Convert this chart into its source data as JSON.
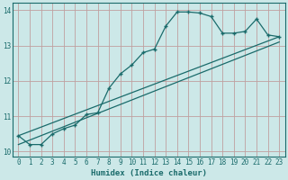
{
  "xlabel": "Humidex (Indice chaleur)",
  "bg_color": "#cce8e8",
  "grid_color": "#c0a0a0",
  "line_color": "#1a6b6b",
  "x_ticks": [
    0,
    1,
    2,
    3,
    4,
    5,
    6,
    7,
    8,
    9,
    10,
    11,
    12,
    13,
    14,
    15,
    16,
    17,
    18,
    19,
    20,
    21,
    22,
    23
  ],
  "y_ticks": [
    10,
    11,
    12,
    13,
    14
  ],
  "x_min": -0.5,
  "x_max": 23.5,
  "y_min": 9.85,
  "y_max": 14.2,
  "curve1_x": [
    0,
    1,
    2,
    3,
    4,
    5,
    6,
    7,
    8,
    9,
    10,
    11,
    12,
    13,
    14,
    15,
    16,
    17,
    18,
    19,
    20,
    21,
    22,
    23
  ],
  "curve1_y": [
    10.45,
    10.2,
    10.2,
    10.5,
    10.65,
    10.75,
    11.05,
    11.1,
    11.8,
    12.2,
    12.45,
    12.8,
    12.9,
    13.55,
    13.95,
    13.95,
    13.92,
    13.82,
    13.35,
    13.35,
    13.4,
    13.75,
    13.3,
    13.25
  ],
  "line1_x": [
    0,
    23
  ],
  "line1_y": [
    10.45,
    13.25
  ],
  "line2_x": [
    0,
    23
  ],
  "line2_y": [
    10.2,
    13.1
  ],
  "xlabel_fontsize": 6.5,
  "tick_fontsize": 5.5
}
